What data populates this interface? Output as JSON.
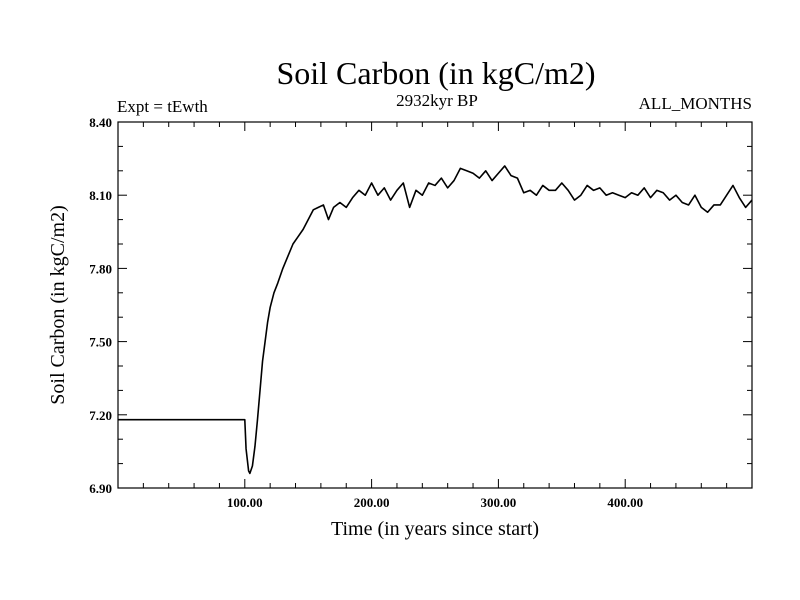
{
  "chart_data": {
    "type": "line",
    "title": "Soil Carbon (in kgC/m2)",
    "subtitle_left": "Expt = tEwth",
    "subtitle_center": "2932kyr BP",
    "subtitle_right": "ALL_MONTHS",
    "xlabel": "Time (in years since start)",
    "ylabel": "Soil Carbon (in kgC/m2)",
    "xlim": [
      0,
      500
    ],
    "ylim": [
      6.9,
      8.4
    ],
    "x_ticks": [
      100,
      200,
      300,
      400
    ],
    "x_tick_labels": [
      "100.00",
      "200.00",
      "300.00",
      "400.00"
    ],
    "y_ticks": [
      6.9,
      7.2,
      7.5,
      7.8,
      8.1,
      8.4
    ],
    "y_tick_labels": [
      "6.90",
      "7.20",
      "7.50",
      "7.80",
      "8.10",
      "8.40"
    ],
    "series": [
      {
        "name": "Soil Carbon",
        "x": [
          0,
          100,
          101,
          103,
          104,
          106,
          108,
          110,
          112,
          114,
          116,
          118,
          120,
          123,
          126,
          130,
          134,
          138,
          142,
          146,
          150,
          154,
          158,
          162,
          166,
          170,
          175,
          180,
          185,
          190,
          195,
          200,
          205,
          210,
          215,
          220,
          225,
          230,
          235,
          240,
          245,
          250,
          255,
          260,
          265,
          270,
          275,
          280,
          285,
          290,
          295,
          300,
          305,
          310,
          315,
          320,
          325,
          330,
          335,
          340,
          345,
          350,
          355,
          360,
          365,
          370,
          375,
          380,
          385,
          390,
          395,
          400,
          405,
          410,
          415,
          420,
          425,
          430,
          435,
          440,
          445,
          450,
          455,
          460,
          465,
          470,
          475,
          480,
          485,
          490,
          495,
          500
        ],
        "y": [
          7.18,
          7.18,
          7.06,
          6.97,
          6.96,
          6.99,
          7.07,
          7.18,
          7.3,
          7.42,
          7.5,
          7.58,
          7.64,
          7.7,
          7.74,
          7.8,
          7.85,
          7.9,
          7.93,
          7.96,
          8.0,
          8.04,
          8.05,
          8.06,
          8.0,
          8.05,
          8.07,
          8.05,
          8.09,
          8.12,
          8.1,
          8.15,
          8.1,
          8.13,
          8.08,
          8.12,
          8.15,
          8.05,
          8.12,
          8.1,
          8.15,
          8.14,
          8.17,
          8.13,
          8.16,
          8.21,
          8.2,
          8.19,
          8.17,
          8.2,
          8.16,
          8.19,
          8.22,
          8.18,
          8.17,
          8.11,
          8.12,
          8.1,
          8.14,
          8.12,
          8.12,
          8.15,
          8.12,
          8.08,
          8.1,
          8.14,
          8.12,
          8.13,
          8.1,
          8.11,
          8.1,
          8.09,
          8.11,
          8.1,
          8.13,
          8.09,
          8.12,
          8.11,
          8.08,
          8.1,
          8.07,
          8.06,
          8.1,
          8.05,
          8.03,
          8.06,
          8.06,
          8.1,
          8.14,
          8.09,
          8.05,
          8.08
        ]
      }
    ]
  }
}
